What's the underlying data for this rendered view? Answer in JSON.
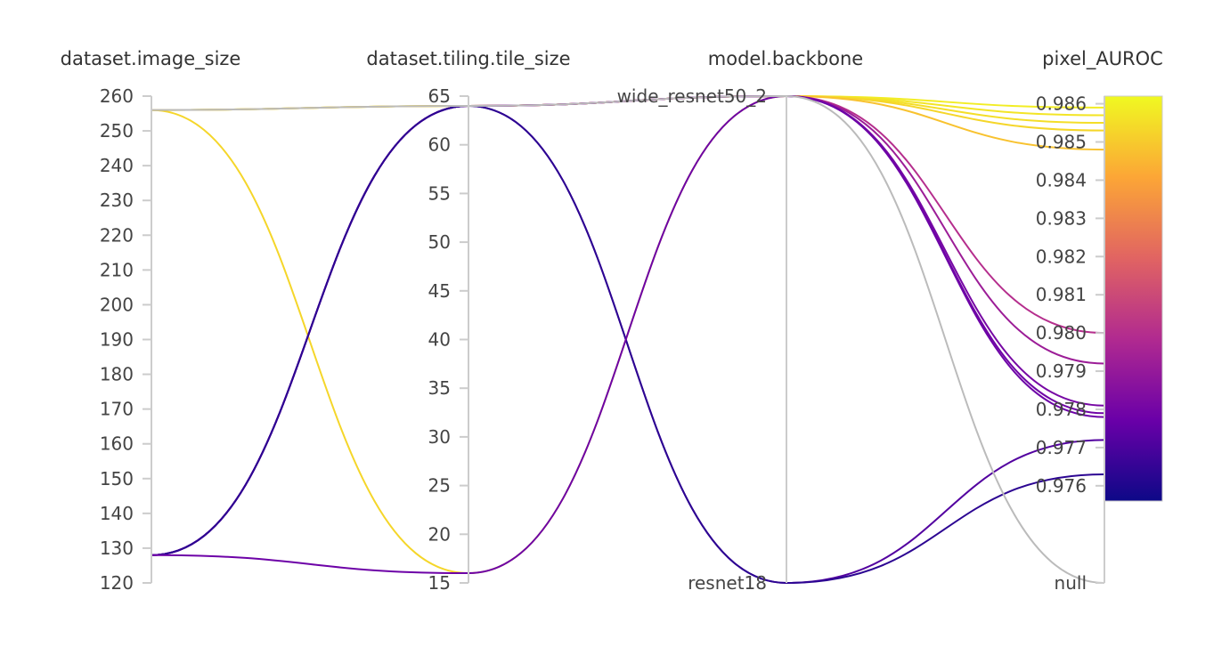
{
  "chart_data": {
    "type": "parallel-coordinates",
    "axes": [
      {
        "name": "dataset.image_size",
        "kind": "numeric",
        "range": [
          120,
          260
        ],
        "ticks": [
          "120",
          "130",
          "140",
          "150",
          "160",
          "170",
          "180",
          "190",
          "200",
          "210",
          "220",
          "230",
          "240",
          "250",
          "260"
        ]
      },
      {
        "name": "dataset.tiling.tile_size",
        "kind": "numeric",
        "range": [
          15,
          65
        ],
        "ticks": [
          "15",
          "20",
          "25",
          "30",
          "35",
          "40",
          "45",
          "50",
          "55",
          "60",
          "65"
        ]
      },
      {
        "name": "model.backbone",
        "kind": "categorical",
        "categories": [
          "resnet18",
          "wide_resnet50_2"
        ]
      },
      {
        "name": "pixel_AUROC",
        "kind": "numeric",
        "range": [
          0.9756,
          0.9862
        ],
        "null_label": "null",
        "ticks": [
          "0.976",
          "0.977",
          "0.978",
          "0.979",
          "0.980",
          "0.981",
          "0.982",
          "0.983",
          "0.984",
          "0.985",
          "0.986"
        ]
      }
    ],
    "colorbar": {
      "range": [
        0.9756,
        0.9862
      ],
      "stops": [
        "#0d0887",
        "#6a00a8",
        "#b12a90",
        "#e16462",
        "#fca636",
        "#f0f921"
      ]
    },
    "runs": [
      {
        "image_size": 256,
        "tile_size": 64,
        "backbone": "wide_resnet50_2",
        "pixel_AUROC": 0.9859
      },
      {
        "image_size": 256,
        "tile_size": 64,
        "backbone": "wide_resnet50_2",
        "pixel_AUROC": 0.9857
      },
      {
        "image_size": 256,
        "tile_size": 64,
        "backbone": "wide_resnet50_2",
        "pixel_AUROC": 0.9855
      },
      {
        "image_size": 256,
        "tile_size": 16,
        "backbone": "wide_resnet50_2",
        "pixel_AUROC": 0.9853
      },
      {
        "image_size": 256,
        "tile_size": 64,
        "backbone": "wide_resnet50_2",
        "pixel_AUROC": 0.9848
      },
      {
        "image_size": 128,
        "tile_size": 64,
        "backbone": "wide_resnet50_2",
        "pixel_AUROC": 0.98
      },
      {
        "image_size": 128,
        "tile_size": 64,
        "backbone": "wide_resnet50_2",
        "pixel_AUROC": 0.9792
      },
      {
        "image_size": 128,
        "tile_size": 64,
        "backbone": "wide_resnet50_2",
        "pixel_AUROC": 0.9781
      },
      {
        "image_size": 128,
        "tile_size": 64,
        "backbone": "wide_resnet50_2",
        "pixel_AUROC": 0.9779
      },
      {
        "image_size": 128,
        "tile_size": 64,
        "backbone": "resnet18",
        "pixel_AUROC": 0.9772
      },
      {
        "image_size": 128,
        "tile_size": 64,
        "backbone": "resnet18",
        "pixel_AUROC": 0.9763
      },
      {
        "image_size": 128,
        "tile_size": 16,
        "backbone": "wide_resnet50_2",
        "pixel_AUROC": 0.9778
      },
      {
        "image_size": 256,
        "tile_size": 64,
        "backbone": "wide_resnet50_2",
        "pixel_AUROC": null
      }
    ]
  }
}
